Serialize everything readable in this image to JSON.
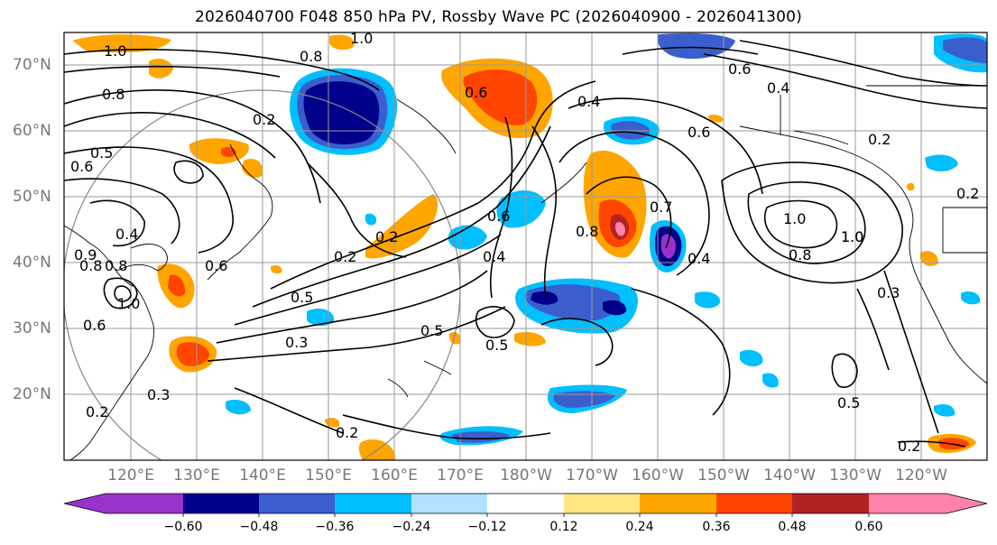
{
  "title": "2026040700 F048 850 hPa PV, Rossby Wave PC (2026040900 - 2026041300)",
  "lat_labels": [
    "70°N",
    "60°N",
    "50°N",
    "40°N",
    "30°N",
    "20°N"
  ],
  "lon_labels": [
    "120°E",
    "130°E",
    "140°E",
    "150°E",
    "160°E",
    "170°E",
    "180°W",
    "170°W",
    "160°W",
    "150°W",
    "140°W",
    "130°W",
    "120°W"
  ],
  "contour_labels": [
    "1.0",
    "0.8",
    "0.6",
    "0.4",
    "0.2",
    "0.5",
    "0.3",
    "0.7",
    "0.9"
  ],
  "colorbar": {
    "colors": [
      "#9932cc",
      "#00008b",
      "#3a5fcd",
      "#00bfff",
      "#b0e2ff",
      "#ffffff",
      "#ffe680",
      "#ffa500",
      "#ff4500",
      "#b22222",
      "#ff82ab"
    ],
    "tick_labels": [
      "−0.60",
      "−0.48",
      "−0.36",
      "−0.24",
      "−0.12",
      "0.12",
      "0.24",
      "0.36",
      "0.48",
      "0.60"
    ]
  }
}
